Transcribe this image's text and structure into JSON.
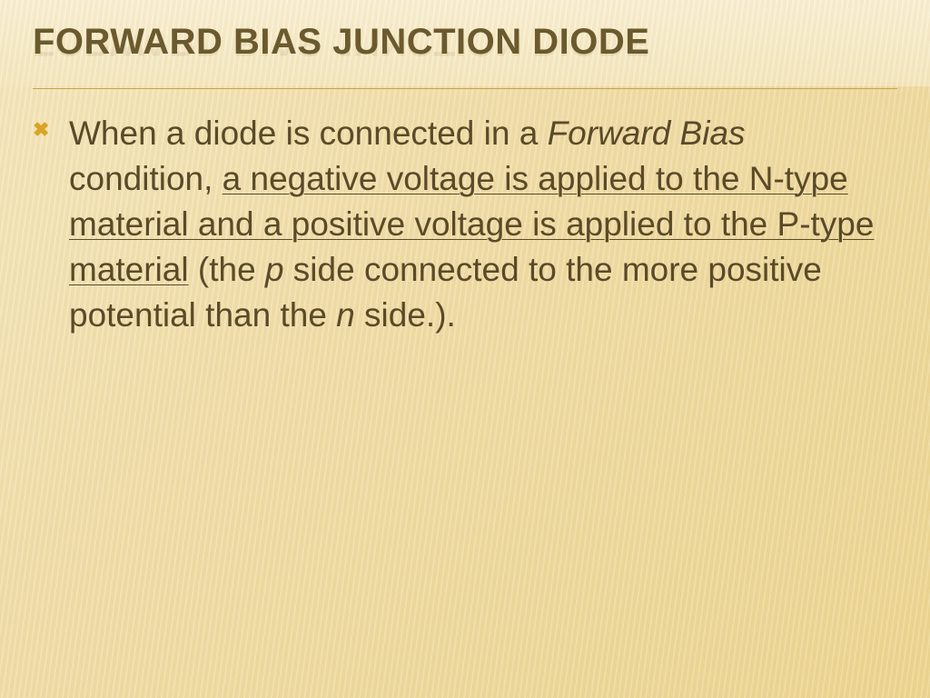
{
  "slide": {
    "title": "FORWARD BIAS JUNCTION DIODE",
    "bullet": {
      "seg1": "When a diode is connected in a ",
      "seg2_italic": "Forward Bias",
      "seg3": " condition, ",
      "seg4_underline": "a negative voltage is applied to the N-type material and a positive voltage is applied to the P-type material",
      "seg5": " (the ",
      "seg6_italic": "p",
      "seg7": " side connected to the more positive potential than the ",
      "seg8_italic": "n",
      "seg9": " side.)."
    }
  },
  "style": {
    "background_gradient_start": "#f5e8c0",
    "background_gradient_end": "#ecd590",
    "title_color": "#6b5a2e",
    "title_fontsize": 40,
    "body_color": "#5a4a28",
    "body_fontsize": 37,
    "divider_color": "#c9a34d",
    "bullet_marker_color": "#d9a426",
    "bullet_marker": "✖",
    "font_family": "Arial"
  }
}
